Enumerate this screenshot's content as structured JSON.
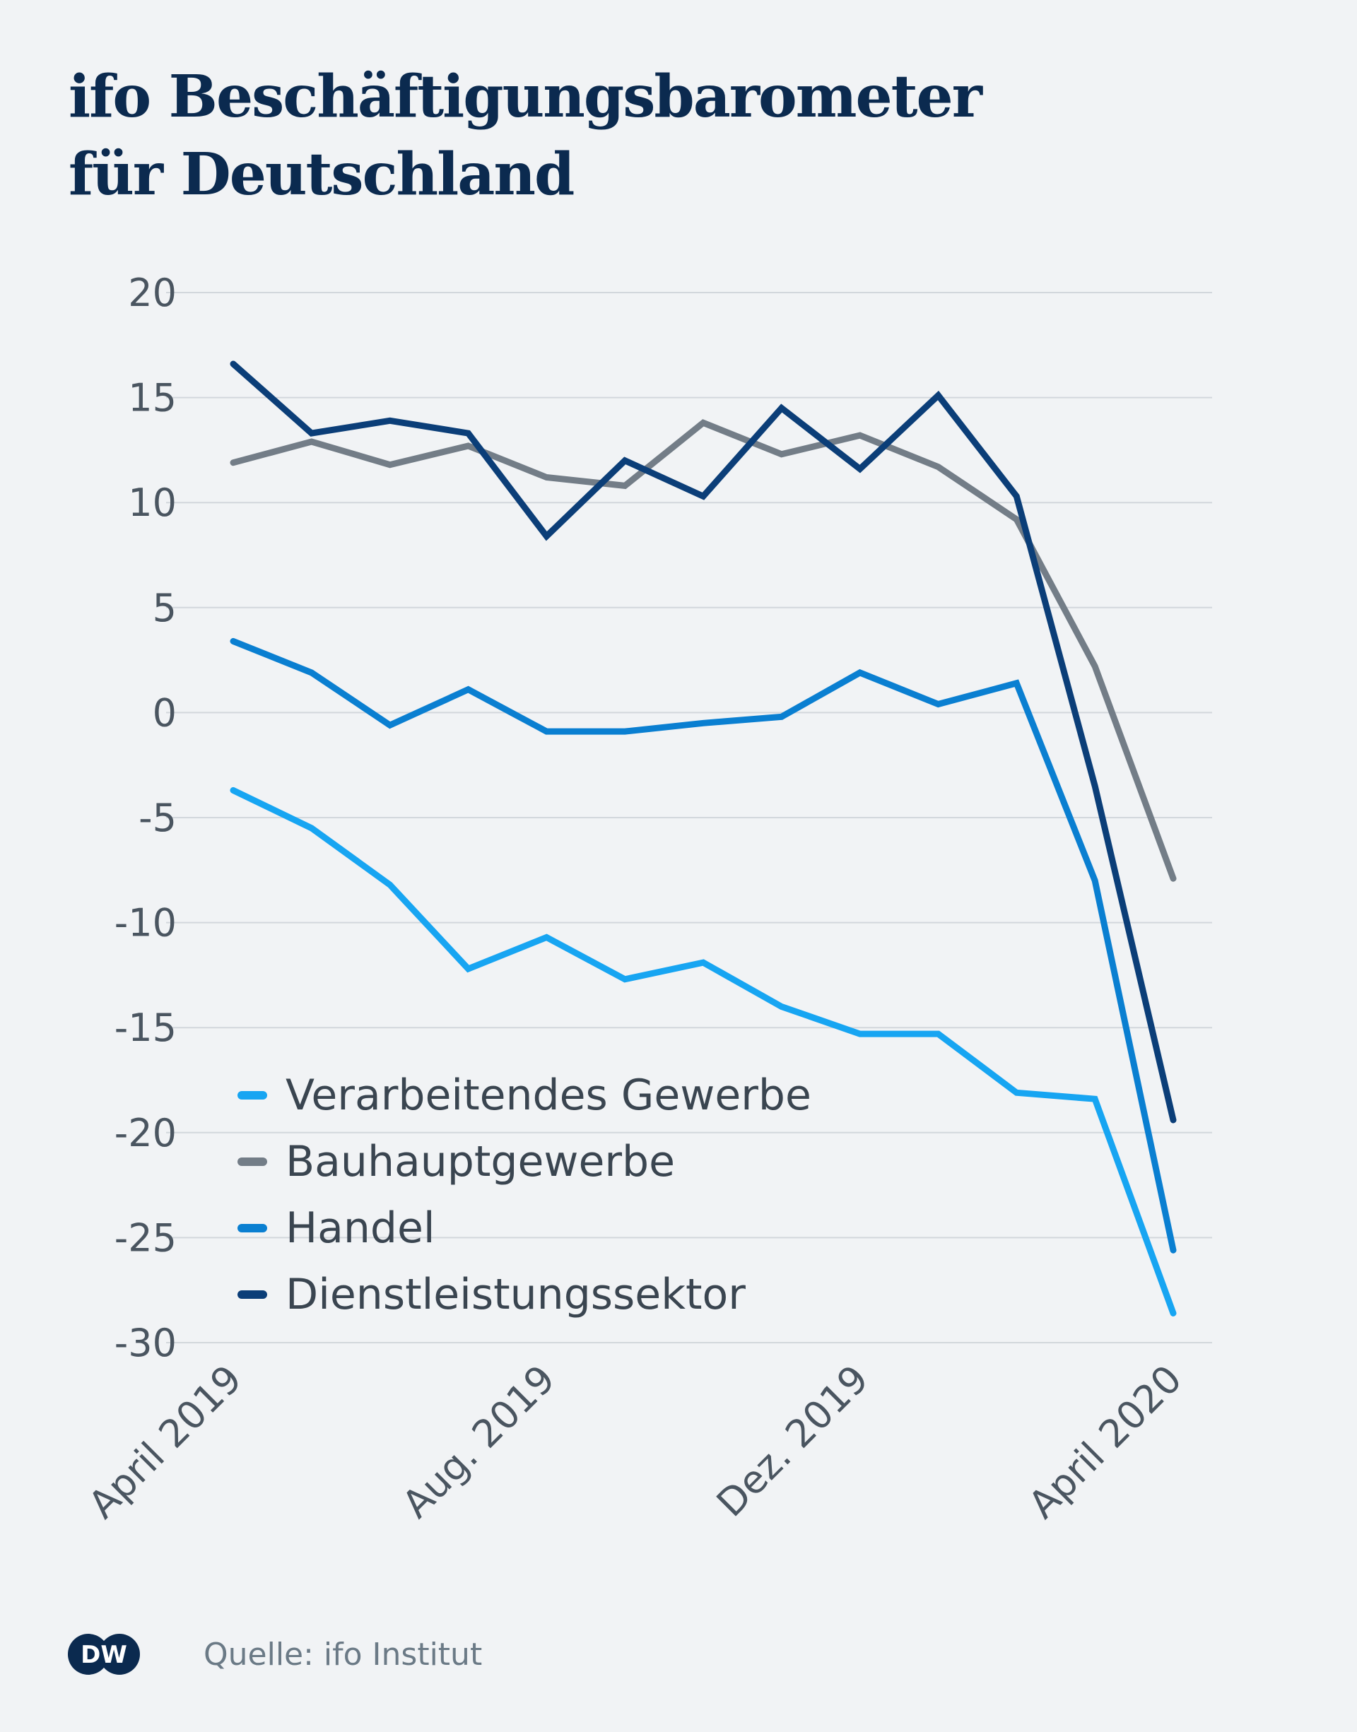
{
  "title": {
    "line1": "ifo Beschäftigungsbarometer",
    "line2": "für Deutschland"
  },
  "source": "Quelle: ifo Institut",
  "logo": {
    "text": "DW",
    "icon": "dw-logo"
  },
  "chart_data": {
    "type": "line",
    "title": "ifo Beschäftigungsbarometer für Deutschland",
    "xlabel": "",
    "ylabel": "",
    "ylim": [
      -30,
      20
    ],
    "yticks": [
      20,
      15,
      10,
      5,
      0,
      -5,
      -10,
      -15,
      -20,
      -25,
      -30
    ],
    "ytick_labels": [
      "20",
      "15",
      "10",
      "5",
      "0",
      "-5",
      "-10",
      "-15",
      "-20",
      "-25",
      "-30"
    ],
    "x": [
      "2019-04",
      "2019-05",
      "2019-06",
      "2019-07",
      "2019-08",
      "2019-09",
      "2019-10",
      "2019-11",
      "2019-12",
      "2020-01",
      "2020-02",
      "2020-03",
      "2020-04"
    ],
    "xtick_labels": [
      {
        "index": 0,
        "label": "April 2019"
      },
      {
        "index": 4,
        "label": "Aug. 2019"
      },
      {
        "index": 8,
        "label": "Dez. 2019"
      },
      {
        "index": 12,
        "label": "April 2020"
      }
    ],
    "grid": true,
    "legend_position": "lower-left",
    "series": [
      {
        "name": "Verarbeitendes Gewerbe",
        "color": "#17a5f2",
        "values": [
          -3.7,
          -5.5,
          -8.2,
          -12.2,
          -10.7,
          -12.7,
          -11.9,
          -14.0,
          -15.3,
          -15.3,
          -18.1,
          -18.4,
          -28.6
        ]
      },
      {
        "name": "Bauhauptgewerbe",
        "color": "#737d87",
        "values": [
          11.9,
          12.9,
          11.8,
          12.7,
          11.2,
          10.8,
          13.8,
          12.3,
          13.2,
          11.7,
          9.2,
          2.2,
          -7.9
        ]
      },
      {
        "name": "Handel",
        "color": "#0a7fd1",
        "values": [
          3.4,
          1.9,
          -0.6,
          1.1,
          -0.9,
          -0.9,
          -0.5,
          -0.2,
          1.9,
          0.4,
          1.4,
          -8.0,
          -25.6
        ]
      },
      {
        "name": "Dienstleistungssektor",
        "color": "#0b3e78",
        "values": [
          16.6,
          13.3,
          13.9,
          13.3,
          8.4,
          12.0,
          10.3,
          14.5,
          11.6,
          15.1,
          10.3,
          -3.5,
          -19.4
        ]
      }
    ]
  }
}
